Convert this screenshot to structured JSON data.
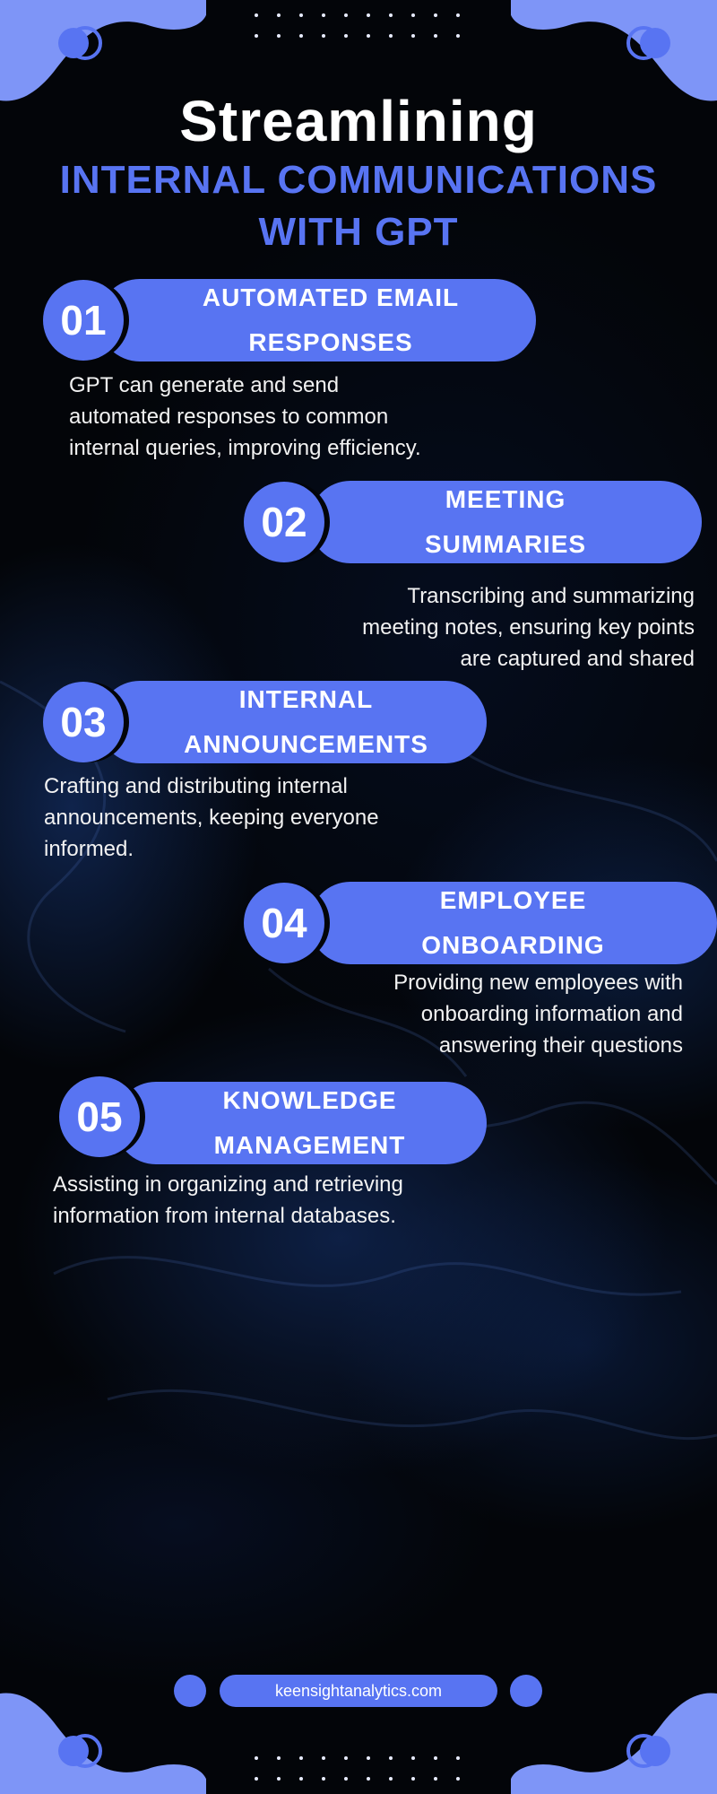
{
  "header": {
    "title": "Streamlining",
    "subtitle_line1": "INTERNAL COMMUNICATIONS",
    "subtitle_line2": "WITH GPT"
  },
  "items": [
    {
      "number": "01",
      "title_line1": "AUTOMATED EMAIL",
      "title_line2": "RESPONSES",
      "desc_line1": "GPT can generate and send",
      "desc_line2": "automated responses to common",
      "desc_line3": "internal queries, improving efficiency."
    },
    {
      "number": "02",
      "title_line1": "MEETING",
      "title_line2": "SUMMARIES",
      "desc_line1": "Transcribing and summarizing",
      "desc_line2": "meeting notes, ensuring key points",
      "desc_line3": "are captured and shared"
    },
    {
      "number": "03",
      "title_line1": "INTERNAL",
      "title_line2": "ANNOUNCEMENTS",
      "desc_line1": "Crafting and distributing internal",
      "desc_line2": "announcements, keeping everyone",
      "desc_line3": "informed."
    },
    {
      "number": "04",
      "title_line1": "EMPLOYEE",
      "title_line2": "ONBOARDING",
      "desc_line1": "Providing new employees with",
      "desc_line2": "onboarding information and",
      "desc_line3": "answering their questions"
    },
    {
      "number": "05",
      "title_line1": "KNOWLEDGE",
      "title_line2": "MANAGEMENT",
      "desc_line1": "Assisting in organizing and retrieving",
      "desc_line2": "information from internal databases."
    }
  ],
  "footer": {
    "website": "keensightanalytics.com"
  },
  "colors": {
    "accent": "#5874f2",
    "accent_light": "#7e95f7",
    "background": "#030509",
    "text": "#ffffff"
  }
}
